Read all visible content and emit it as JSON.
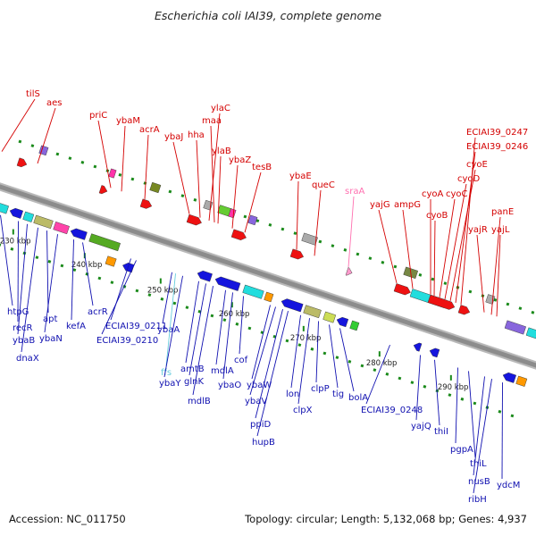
{
  "title": "Escherichia coli IAI39, complete genome",
  "footer": {
    "accession": "Accession: NC_011750",
    "summary": "Topology: circular; Length: 5,132,068 bp; Genes: 4,937"
  },
  "colors": {
    "backbone": "#8c8c8c",
    "top_label": "#d40000",
    "bottom_label": "#1010b0",
    "rna_label": "#ff70b0",
    "ticks": "#1a8a1a",
    "forward": "#ee1111",
    "reverse": "#1515dd"
  },
  "ticks": [
    "230 kbp",
    "240 kbp",
    "250 kbp",
    "260 kbp",
    "270 kbp",
    "280 kbp",
    "290 kbp"
  ],
  "top_labels": [
    "tilS",
    "aes",
    "priC",
    "ybaM",
    "acrA",
    "ybaJ",
    "hha",
    "ylaC",
    "maa",
    "ylaB",
    "ybaZ",
    "tesB",
    "ybaE",
    "queC",
    "sraA",
    "yajG",
    "ampG",
    "cyoA",
    "cyoB",
    "cyoC",
    "cyoD",
    "cyoE",
    "ECIAI39_0246",
    "ECIAI39_0247",
    "yajR",
    "panE",
    "yajL"
  ],
  "bottom_labels": [
    "htpG",
    "recR",
    "ybaB",
    "dnaX",
    "apt",
    "ybaN",
    "kefA",
    "acrR",
    "ECIAI39_0211",
    "ECIAI39_0210",
    "ybaA",
    "ffs",
    "ybaY",
    "amtB",
    "glnK",
    "mdlB",
    "mdlA",
    "ybaO",
    "cof",
    "ybaW",
    "ybaV",
    "ppiD",
    "hupB",
    "lon",
    "clpX",
    "clpP",
    "tig",
    "bolA",
    "ECIAI39_0248",
    "yajQ",
    "thiI",
    "pgpA",
    "thiL",
    "nusB",
    "ribH",
    "ydcM"
  ]
}
